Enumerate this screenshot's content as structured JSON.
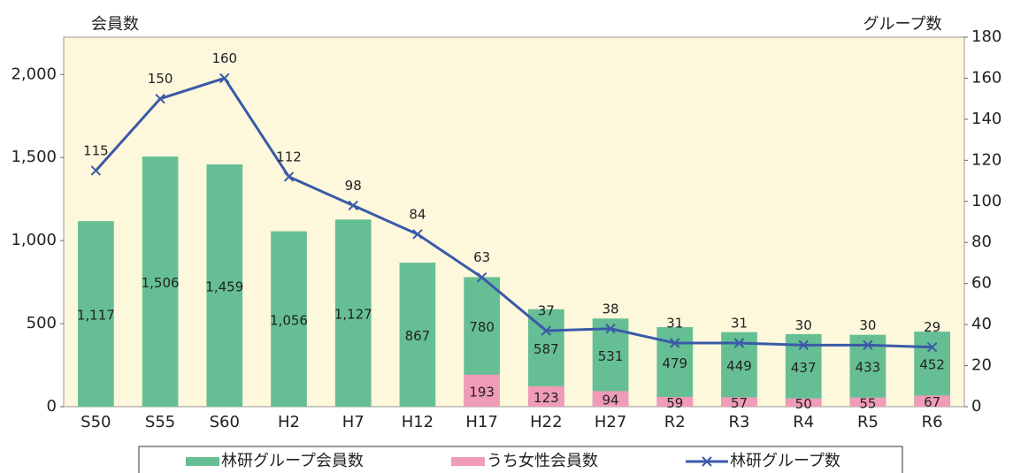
{
  "chart_data": {
    "type": "bar",
    "y_label": "会員数",
    "y2_label": "グループ数",
    "categories": [
      "S50",
      "S55",
      "S60",
      "H2",
      "H7",
      "H12",
      "H17",
      "H22",
      "H27",
      "R2",
      "R3",
      "R4",
      "R5",
      "R6"
    ],
    "series": [
      {
        "name": "林研グループ会員数",
        "type": "bar",
        "color": "#66bf94",
        "values": [
          1117,
          1506,
          1459,
          1056,
          1127,
          867,
          780,
          587,
          531,
          479,
          449,
          437,
          433,
          452
        ],
        "value_labels": [
          "1,117",
          "1,506",
          "1,459",
          "1,056",
          "1,127",
          "867",
          "780",
          "587",
          "531",
          "479",
          "449",
          "437",
          "433",
          "452"
        ]
      },
      {
        "name": "うち女性会員数",
        "type": "bar",
        "color": "#f09bb8",
        "values": [
          null,
          null,
          null,
          null,
          null,
          null,
          193,
          123,
          94,
          59,
          57,
          50,
          55,
          67
        ]
      },
      {
        "name": "林研グループ数",
        "type": "line",
        "axis": "y2",
        "color": "#3a5aa8",
        "values": [
          115,
          150,
          160,
          112,
          98,
          84,
          63,
          37,
          38,
          31,
          31,
          30,
          30,
          29
        ]
      }
    ],
    "ylim": [
      0,
      2225
    ],
    "yticks": [
      0,
      500,
      {
        "value": 1000,
        "label": "1,000"
      },
      {
        "value": 1500,
        "label": "1,500"
      },
      {
        "value": 2000,
        "label": "2,000"
      }
    ],
    "y2lim": [
      0,
      180
    ],
    "y2ticks": [
      0,
      20,
      40,
      60,
      80,
      100,
      120,
      140,
      160,
      180
    ]
  }
}
